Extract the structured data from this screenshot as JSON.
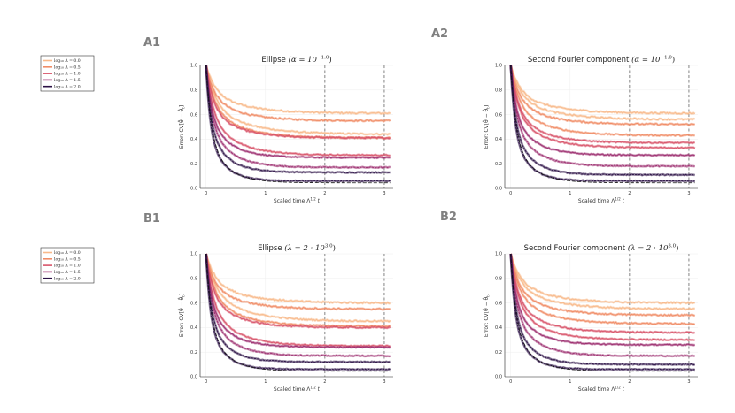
{
  "panels": [
    {
      "label": "A1",
      "title_text": "Ellipse",
      "title_param": "(α = 10",
      "title_exp": "−1.0",
      "title_close": ")"
    },
    {
      "label": "A2",
      "title_text": "Second Fourier component",
      "title_param": "(α = 10",
      "title_exp": "−1.0",
      "title_close": ")"
    },
    {
      "label": "B1",
      "title_text": "Ellipse",
      "title_param": "(λ = 2 · 10",
      "title_exp": "3.0",
      "title_close": ")"
    },
    {
      "label": "B2",
      "title_text": "Second Fourier component",
      "title_param": "(λ = 2 · 10",
      "title_exp": "3.0",
      "title_close": ")"
    }
  ],
  "axes": {
    "xlabel_main": "Scaled time Λ",
    "xlabel_exp": "1/2",
    "xlabel_var": "t",
    "ylabel": "Error: CV[θ̂ − θ̂",
    "ylabel_sub": "t",
    "ylabel_close": "]",
    "xticks": [
      "0",
      "1",
      "2",
      "3"
    ],
    "yticks": [
      "0.0",
      "0.2",
      "0.4",
      "0.6",
      "0.8",
      "1.0"
    ]
  },
  "legend": {
    "entries": [
      {
        "text": "log₁₀ Λ = 0.0",
        "color": "#f8b98a"
      },
      {
        "text": "log₁₀ Λ = 0.5",
        "color": "#f08c66"
      },
      {
        "text": "log₁₀ Λ = 1.0",
        "color": "#d8546a"
      },
      {
        "text": "log₁₀ Λ = 1.5",
        "color": "#9c2e6f"
      },
      {
        "text": "log₁₀ Λ = 2.0",
        "color": "#2b1145"
      }
    ]
  },
  "chart_data": [
    {
      "type": "line",
      "panel": "A1",
      "title": "Ellipse (α = 10^−1.0)",
      "xlabel": "Scaled time Λ^1/2 t",
      "ylabel": "Error: CV[θ̂ − θ̂_t]",
      "xlim": [
        -0.1,
        3.15
      ],
      "ylim": [
        0,
        1
      ],
      "vlines": [
        2.0,
        3.0
      ],
      "series": [
        {
          "name": "log10 Λ = 0.0 (upper)",
          "color": "#f8b98a",
          "asymptote": 0.61,
          "rate": 3.0
        },
        {
          "name": "log10 Λ = 0.0 (lower)",
          "color": "#f8b98a",
          "asymptote": 0.44,
          "rate": 3.0
        },
        {
          "name": "log10 Λ = 0.5 (upper)",
          "color": "#f08c66",
          "asymptote": 0.55,
          "rate": 3.5
        },
        {
          "name": "log10 Λ = 0.5 (lower)",
          "color": "#f08c66",
          "asymptote": 0.41,
          "rate": 3.5
        },
        {
          "name": "log10 Λ = 1.0 (upper)",
          "color": "#d8546a",
          "asymptote": 0.41,
          "rate": 4.0
        },
        {
          "name": "log10 Λ = 1.0 (lower)",
          "color": "#d8546a",
          "asymptote": 0.27,
          "rate": 4.0
        },
        {
          "name": "log10 Λ = 1.5 (upper)",
          "color": "#9c2e6f",
          "asymptote": 0.25,
          "rate": 5.0
        },
        {
          "name": "log10 Λ = 1.5 (lower)",
          "color": "#9c2e6f",
          "asymptote": 0.17,
          "rate": 5.0
        },
        {
          "name": "log10 Λ = 2.0 (upper)",
          "color": "#2b1145",
          "asymptote": 0.13,
          "rate": 6.0
        },
        {
          "name": "log10 Λ = 2.0 (lower)",
          "color": "#2b1145",
          "asymptote": 0.06,
          "rate": 7.0
        }
      ]
    },
    {
      "type": "line",
      "panel": "A2",
      "title": "Second Fourier component (α = 10^−1.0)",
      "xlabel": "Scaled time Λ^1/2 t",
      "ylabel": "Error: CV[θ̂ − θ̂_t]",
      "xlim": [
        -0.1,
        3.15
      ],
      "ylim": [
        0,
        1
      ],
      "vlines": [
        2.0,
        3.0
      ],
      "series": [
        {
          "name": "log10 Λ = 0.0 (upper)",
          "color": "#f8b98a",
          "asymptote": 0.61,
          "rate": 3.0
        },
        {
          "name": "log10 Λ = 0.0 (lower)",
          "color": "#f8b98a",
          "asymptote": 0.56,
          "rate": 3.0
        },
        {
          "name": "log10 Λ = 0.5 (upper)",
          "color": "#f08c66",
          "asymptote": 0.52,
          "rate": 3.5
        },
        {
          "name": "log10 Λ = 0.5 (lower)",
          "color": "#f08c66",
          "asymptote": 0.43,
          "rate": 3.5
        },
        {
          "name": "log10 Λ = 1.0 (upper)",
          "color": "#d8546a",
          "asymptote": 0.37,
          "rate": 4.0
        },
        {
          "name": "log10 Λ = 1.0 (lower)",
          "color": "#d8546a",
          "asymptote": 0.33,
          "rate": 4.0
        },
        {
          "name": "log10 Λ = 1.5 (upper)",
          "color": "#9c2e6f",
          "asymptote": 0.27,
          "rate": 5.0
        },
        {
          "name": "log10 Λ = 1.5 (lower)",
          "color": "#9c2e6f",
          "asymptote": 0.18,
          "rate": 5.0
        },
        {
          "name": "log10 Λ = 2.0 (upper)",
          "color": "#2b1145",
          "asymptote": 0.11,
          "rate": 6.0
        },
        {
          "name": "log10 Λ = 2.0 (lower)",
          "color": "#2b1145",
          "asymptote": 0.06,
          "rate": 7.0
        }
      ]
    },
    {
      "type": "line",
      "panel": "B1",
      "title": "Ellipse (λ = 2 · 10^3.0)",
      "xlabel": "Scaled time Λ^1/2 t",
      "ylabel": "Error: CV[θ̂ − θ̂_t]",
      "xlim": [
        -0.1,
        3.15
      ],
      "ylim": [
        0,
        1
      ],
      "vlines": [
        2.0,
        3.0
      ],
      "series": [
        {
          "name": "log10 Λ = 0.0 (upper)",
          "color": "#f8b98a",
          "asymptote": 0.6,
          "rate": 3.0
        },
        {
          "name": "log10 Λ = 0.0 (lower)",
          "color": "#f8b98a",
          "asymptote": 0.45,
          "rate": 3.0
        },
        {
          "name": "log10 Λ = 0.5 (upper)",
          "color": "#f08c66",
          "asymptote": 0.55,
          "rate": 3.5
        },
        {
          "name": "log10 Λ = 0.5 (lower)",
          "color": "#f08c66",
          "asymptote": 0.41,
          "rate": 3.5
        },
        {
          "name": "log10 Λ = 1.0 (upper)",
          "color": "#d8546a",
          "asymptote": 0.4,
          "rate": 4.0
        },
        {
          "name": "log10 Λ = 1.0 (lower)",
          "color": "#d8546a",
          "asymptote": 0.25,
          "rate": 4.0
        },
        {
          "name": "log10 Λ = 1.5 (upper)",
          "color": "#9c2e6f",
          "asymptote": 0.24,
          "rate": 5.0
        },
        {
          "name": "log10 Λ = 1.5 (lower)",
          "color": "#9c2e6f",
          "asymptote": 0.17,
          "rate": 5.0
        },
        {
          "name": "log10 Λ = 2.0 (upper)",
          "color": "#2b1145",
          "asymptote": 0.12,
          "rate": 6.0
        },
        {
          "name": "log10 Λ = 2.0 (lower)",
          "color": "#2b1145",
          "asymptote": 0.06,
          "rate": 7.0
        }
      ]
    },
    {
      "type": "line",
      "panel": "B2",
      "title": "Second Fourier component (λ = 2 · 10^3.0)",
      "xlabel": "Scaled time Λ^1/2 t",
      "ylabel": "Error: CV[θ̂ − θ̂_t]",
      "xlim": [
        -0.1,
        3.15
      ],
      "ylim": [
        0,
        1
      ],
      "vlines": [
        2.0,
        3.0
      ],
      "series": [
        {
          "name": "log10 Λ = 0.0 (upper)",
          "color": "#f8b98a",
          "asymptote": 0.6,
          "rate": 3.0
        },
        {
          "name": "log10 Λ = 0.0 (lower)",
          "color": "#f8b98a",
          "asymptote": 0.55,
          "rate": 3.0
        },
        {
          "name": "log10 Λ = 0.5 (upper)",
          "color": "#f08c66",
          "asymptote": 0.5,
          "rate": 3.5
        },
        {
          "name": "log10 Λ = 0.5 (lower)",
          "color": "#f08c66",
          "asymptote": 0.43,
          "rate": 3.5
        },
        {
          "name": "log10 Λ = 1.0 (upper)",
          "color": "#d8546a",
          "asymptote": 0.36,
          "rate": 4.0
        },
        {
          "name": "log10 Λ = 1.0 (lower)",
          "color": "#d8546a",
          "asymptote": 0.3,
          "rate": 4.0
        },
        {
          "name": "log10 Λ = 1.5 (upper)",
          "color": "#9c2e6f",
          "asymptote": 0.26,
          "rate": 5.0
        },
        {
          "name": "log10 Λ = 1.5 (lower)",
          "color": "#9c2e6f",
          "asymptote": 0.17,
          "rate": 5.0
        },
        {
          "name": "log10 Λ = 2.0 (upper)",
          "color": "#2b1145",
          "asymptote": 0.1,
          "rate": 6.0
        },
        {
          "name": "log10 Λ = 2.0 (lower)",
          "color": "#2b1145",
          "asymptote": 0.06,
          "rate": 7.0
        }
      ]
    }
  ]
}
